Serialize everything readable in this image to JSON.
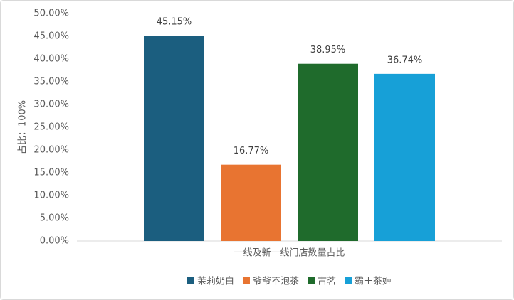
{
  "chart_data": {
    "type": "bar",
    "categories": [
      "一线及新一线门店数量占比"
    ],
    "y_label": "占比：100%",
    "series": [
      {
        "name": "茉莉奶白",
        "color": "#1b5e7f",
        "values": [
          45.15
        ],
        "value_labels": [
          "45.15%"
        ]
      },
      {
        "name": "爷爷不泡茶",
        "color": "#e87431",
        "values": [
          16.77
        ],
        "value_labels": [
          "16.77%"
        ]
      },
      {
        "name": "古茗",
        "color": "#1f6b2c",
        "values": [
          38.95
        ],
        "value_labels": [
          "38.95%"
        ]
      },
      {
        "name": "霸王茶姬",
        "color": "#17a0d7",
        "values": [
          36.74
        ],
        "value_labels": [
          "36.74%"
        ]
      }
    ],
    "ylim": [
      0,
      50
    ],
    "yticks": [
      {
        "value": 0,
        "label": "0.00%"
      },
      {
        "value": 5,
        "label": "5.00%"
      },
      {
        "value": 10,
        "label": "10.00%"
      },
      {
        "value": 15,
        "label": "15.00%"
      },
      {
        "value": 20,
        "label": "20.00%"
      },
      {
        "value": 25,
        "label": "25.00%"
      },
      {
        "value": 30,
        "label": "30.00%"
      },
      {
        "value": 35,
        "label": "35.00%"
      },
      {
        "value": 40,
        "label": "40.00%"
      },
      {
        "value": 45,
        "label": "45.00%"
      },
      {
        "value": 50,
        "label": "50.00%"
      }
    ],
    "grid": false,
    "legend": "bottom"
  }
}
